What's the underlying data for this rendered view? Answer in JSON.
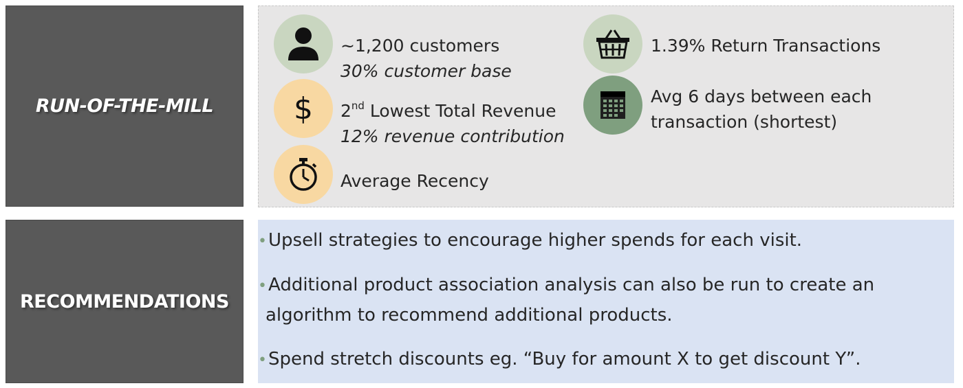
{
  "segment": {
    "label": "RUN-OF-THE-MILL"
  },
  "recommendations_box": {
    "label": "RECOMMENDATIONS"
  },
  "colors": {
    "label_box": "#595959",
    "stats_panel": "#e7e6e6",
    "rec_panel": "#dae3f3",
    "circle_light_green": "#c9d6c0",
    "circle_peach": "#f8d8a2",
    "circle_dark_green": "#7f9f7f"
  },
  "stats": {
    "customers": {
      "icon": "person-icon",
      "main": "~1,200 customers",
      "sub": "30% customer base"
    },
    "revenue": {
      "icon": "dollar-icon",
      "main_prefix": "2",
      "main_sup": "nd",
      "main_rest": " Lowest Total Revenue",
      "sub": "12% revenue contribution"
    },
    "recency": {
      "icon": "stopwatch-icon",
      "main": "Average Recency"
    },
    "returns": {
      "icon": "basket-icon",
      "main": "1.39% Return Transactions"
    },
    "frequency": {
      "icon": "calendar-icon",
      "line1": "Avg 6 days between each",
      "line2": "transaction (shortest)"
    }
  },
  "recommendations": [
    {
      "bullet": "•",
      "text": "Upsell strategies to encourage higher spends for each visit."
    },
    {
      "bullet": "•",
      "text": "Additional product association analysis can also be run to create an",
      "cont": "algorithm to recommend additional products."
    },
    {
      "bullet": "•",
      "text": "Spend stretch discounts eg. “Buy for amount X to get discount Y”."
    }
  ]
}
